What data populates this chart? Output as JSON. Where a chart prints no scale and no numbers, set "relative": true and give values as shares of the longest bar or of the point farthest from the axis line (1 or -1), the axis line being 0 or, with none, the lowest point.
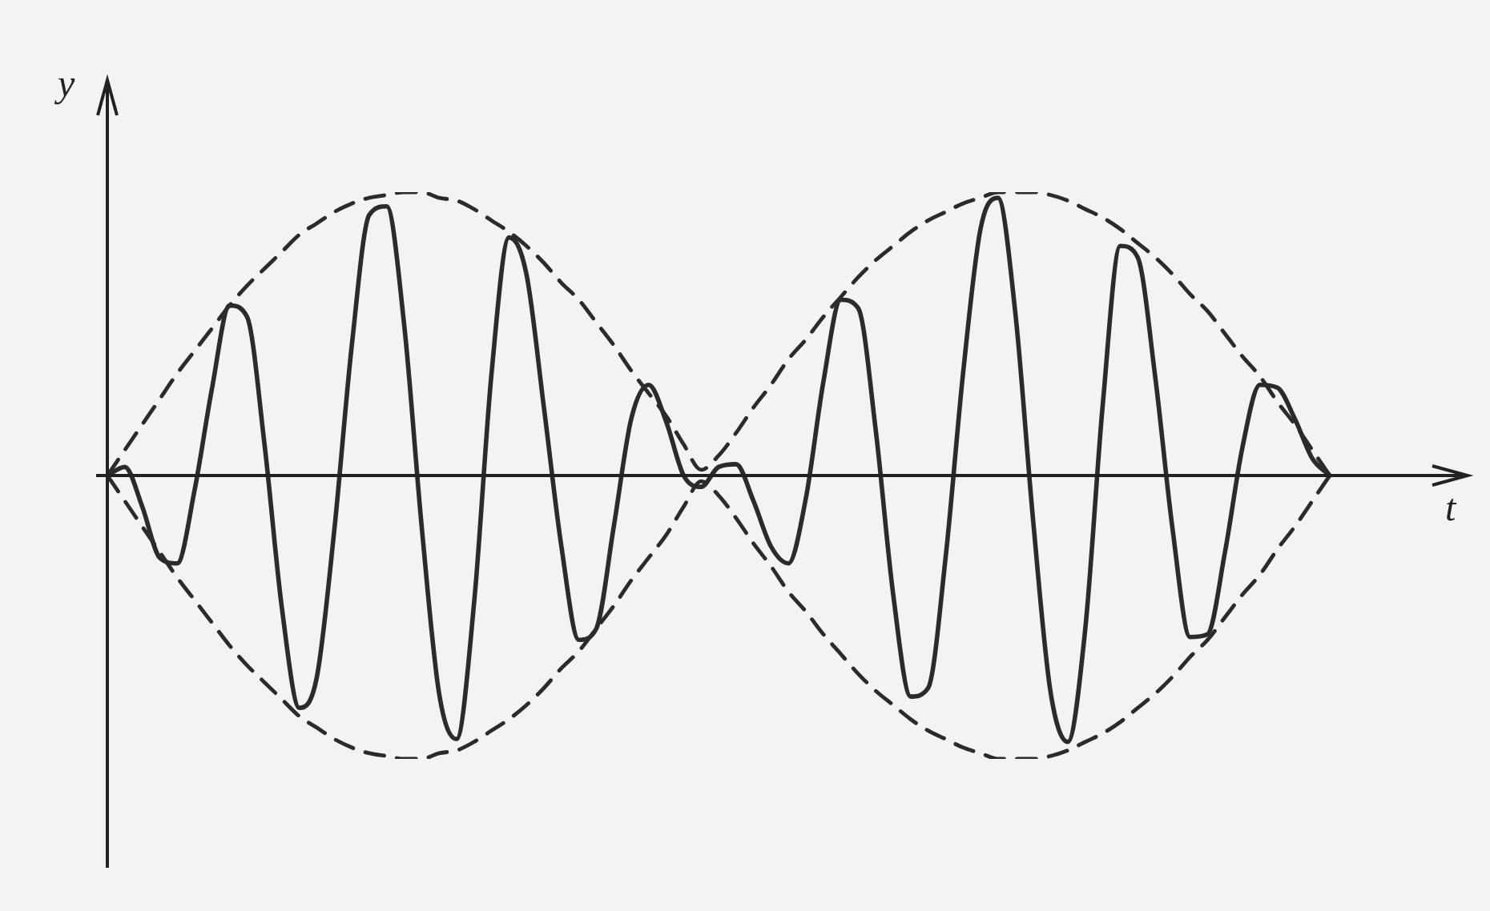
{
  "chart_data": {
    "type": "line",
    "xlabel": "t",
    "ylabel": "y",
    "relative": true,
    "legend": false,
    "marker": "none",
    "categories": [
      null,
      null,
      null,
      null,
      null,
      null,
      null,
      null,
      null,
      null,
      null,
      null,
      null,
      null,
      null,
      null,
      null,
      null,
      null,
      null,
      null,
      null,
      null,
      null,
      null,
      null,
      null,
      null,
      null,
      null,
      null,
      null,
      null,
      null,
      null,
      null,
      null,
      null,
      null,
      null,
      null,
      null,
      null,
      null,
      null,
      null,
      null,
      null,
      null,
      null,
      null,
      null,
      null,
      null,
      null,
      null,
      null,
      null,
      null,
      null,
      null,
      null,
      null,
      null,
      null,
      null,
      null,
      null,
      null,
      null,
      null
    ],
    "series": [
      {
        "color": "#2b2b2b",
        "line_style": "solid",
        "values": [
          0,
          0.03,
          -0.11,
          -0.29,
          -0.31,
          -0.05,
          0.31,
          0.6,
          0.56,
          0.11,
          -0.47,
          -0.82,
          -0.71,
          -0.19,
          0.46,
          0.92,
          0.95,
          0.53,
          -0.18,
          -0.77,
          -0.93,
          -0.45,
          0.36,
          0.84,
          0.71,
          0.24,
          -0.25,
          -0.58,
          -0.54,
          -0.18,
          0.2,
          0.32,
          0.19,
          0,
          -0.04,
          0.03,
          0.04,
          -0.09,
          -0.25,
          -0.31,
          -0.08,
          0.33,
          0.62,
          0.59,
          0.16,
          -0.42,
          -0.78,
          -0.75,
          -0.29,
          0.36,
          0.87,
          0.98,
          0.57,
          -0.15,
          -0.76,
          -0.94,
          -0.54,
          0.25,
          0.81,
          0.77,
          0.35,
          -0.19,
          -0.57,
          -0.56,
          -0.27,
          0.1,
          0.32,
          0.31,
          0.2,
          0.06,
          0
        ]
      },
      {
        "color": "#2b2b2b",
        "line_style": "dashed",
        "values": [
          0,
          0.09,
          0.18,
          0.27,
          0.36,
          0.44,
          0.52,
          0.6,
          0.67,
          0.73,
          0.79,
          0.85,
          0.89,
          0.93,
          0.96,
          0.98,
          0.99,
          1,
          1,
          0.98,
          0.97,
          0.94,
          0.9,
          0.86,
          0.81,
          0.75,
          0.68,
          0.62,
          0.54,
          0.46,
          0.37,
          0.29,
          0.21,
          0.11,
          0.02,
          0.07,
          0.15,
          0.24,
          0.32,
          0.41,
          0.48,
          0.56,
          0.63,
          0.7,
          0.76,
          0.81,
          0.86,
          0.9,
          0.93,
          0.96,
          0.98,
          1,
          1,
          1,
          0.99,
          0.97,
          0.94,
          0.91,
          0.87,
          0.82,
          0.77,
          0.71,
          0.64,
          0.58,
          0.5,
          0.42,
          0.35,
          0.26,
          0.18,
          0.09,
          0
        ]
      },
      {
        "color": "#2b2b2b",
        "line_style": "dashed",
        "values": [
          0,
          -0.09,
          -0.18,
          -0.27,
          -0.36,
          -0.44,
          -0.52,
          -0.6,
          -0.67,
          -0.73,
          -0.79,
          -0.85,
          -0.89,
          -0.93,
          -0.96,
          -0.98,
          -0.99,
          -1,
          -1,
          -0.98,
          -0.97,
          -0.94,
          -0.9,
          -0.86,
          -0.81,
          -0.75,
          -0.68,
          -0.62,
          -0.54,
          -0.46,
          -0.37,
          -0.29,
          -0.21,
          -0.11,
          -0.02,
          -0.07,
          -0.15,
          -0.24,
          -0.32,
          -0.41,
          -0.48,
          -0.56,
          -0.63,
          -0.7,
          -0.76,
          -0.81,
          -0.86,
          -0.9,
          -0.93,
          -0.96,
          -0.98,
          -1,
          -1,
          -1,
          -0.99,
          -0.97,
          -0.94,
          -0.91,
          -0.87,
          -0.82,
          -0.77,
          -0.71,
          -0.64,
          -0.58,
          -0.5,
          -0.42,
          -0.35,
          -0.26,
          -0.18,
          -0.09,
          0
        ]
      }
    ]
  }
}
